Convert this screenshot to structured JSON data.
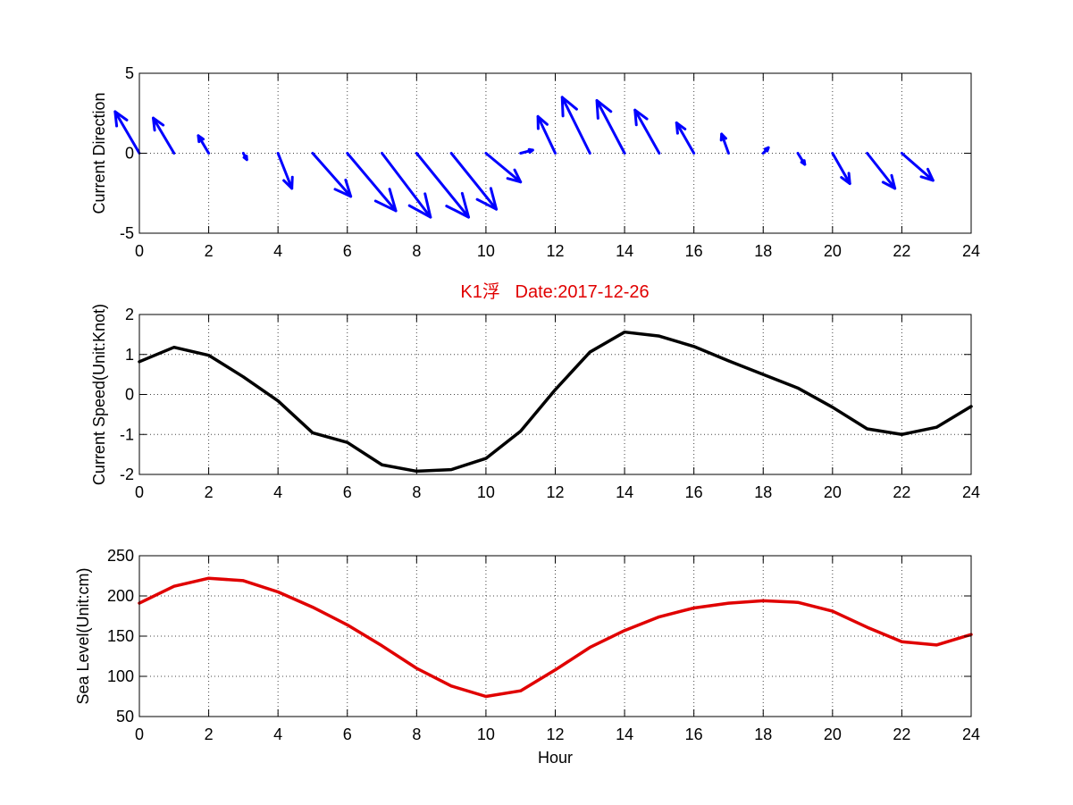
{
  "title": "K1浮   Date:2017-12-26",
  "colors": {
    "title": "#e00000",
    "arrows": "#0000ff",
    "speed_line": "#000000",
    "sea_level_line": "#e00000",
    "axes": "#000000",
    "grid": "#444444",
    "background": "#ffffff"
  },
  "chart_data": [
    {
      "type": "quiver",
      "ylabel": "Current Direction",
      "xlabel": "",
      "xlim": [
        0,
        24
      ],
      "ylim": [
        -5,
        5
      ],
      "xticks": [
        0,
        2,
        4,
        6,
        8,
        10,
        12,
        14,
        16,
        18,
        20,
        22,
        24
      ],
      "yticks": [
        -5,
        0,
        5
      ],
      "grid": true,
      "arrows": [
        {
          "x": 0,
          "u": -0.7,
          "v": 2.6
        },
        {
          "x": 1,
          "u": -0.6,
          "v": 2.2
        },
        {
          "x": 2,
          "u": -0.3,
          "v": 1.1
        },
        {
          "x": 3,
          "u": 0.1,
          "v": -0.4
        },
        {
          "x": 4,
          "u": 0.4,
          "v": -2.2
        },
        {
          "x": 5,
          "u": 1.1,
          "v": -2.7
        },
        {
          "x": 6,
          "u": 1.4,
          "v": -3.6
        },
        {
          "x": 7,
          "u": 1.4,
          "v": -4.0
        },
        {
          "x": 8,
          "u": 1.5,
          "v": -4.0
        },
        {
          "x": 9,
          "u": 1.3,
          "v": -3.5
        },
        {
          "x": 10,
          "u": 1.0,
          "v": -1.8
        },
        {
          "x": 11,
          "u": 0.35,
          "v": 0.2
        },
        {
          "x": 12,
          "u": -0.5,
          "v": 2.3
        },
        {
          "x": 13,
          "u": -0.8,
          "v": 3.5
        },
        {
          "x": 14,
          "u": -0.8,
          "v": 3.3
        },
        {
          "x": 15,
          "u": -0.7,
          "v": 2.7
        },
        {
          "x": 16,
          "u": -0.5,
          "v": 1.9
        },
        {
          "x": 17,
          "u": -0.2,
          "v": 1.2
        },
        {
          "x": 18,
          "u": 0.15,
          "v": 0.35
        },
        {
          "x": 19,
          "u": 0.2,
          "v": -0.7
        },
        {
          "x": 20,
          "u": 0.5,
          "v": -1.9
        },
        {
          "x": 21,
          "u": 0.8,
          "v": -2.2
        },
        {
          "x": 22,
          "u": 0.9,
          "v": -1.7
        }
      ]
    },
    {
      "type": "line",
      "ylabel": "Current Speed(Unit:Knot)",
      "xlabel": "",
      "xlim": [
        0,
        24
      ],
      "ylim": [
        -2,
        2
      ],
      "xticks": [
        0,
        2,
        4,
        6,
        8,
        10,
        12,
        14,
        16,
        18,
        20,
        22,
        24
      ],
      "yticks": [
        -2,
        -1,
        0,
        1,
        2
      ],
      "grid": true,
      "x": [
        0,
        1,
        2,
        3,
        4,
        5,
        6,
        7,
        8,
        9,
        10,
        11,
        12,
        13,
        14,
        15,
        16,
        17,
        18,
        19,
        20,
        21,
        22,
        23,
        24
      ],
      "series": [
        {
          "values": [
            0.82,
            1.18,
            0.98,
            0.44,
            -0.16,
            -0.96,
            -1.2,
            -1.76,
            -1.92,
            -1.88,
            -1.6,
            -0.92,
            0.12,
            1.06,
            1.56,
            1.46,
            1.2,
            0.84,
            0.5,
            0.16,
            -0.32,
            -0.86,
            -1.0,
            -0.82,
            -0.3
          ]
        }
      ]
    },
    {
      "type": "line",
      "ylabel": "Sea Level(Unit:cm)",
      "xlabel": "Hour",
      "xlim": [
        0,
        24
      ],
      "ylim": [
        50,
        250
      ],
      "xticks": [
        0,
        2,
        4,
        6,
        8,
        10,
        12,
        14,
        16,
        18,
        20,
        22,
        24
      ],
      "yticks": [
        50,
        100,
        150,
        200,
        250
      ],
      "grid": true,
      "x": [
        0,
        1,
        2,
        3,
        4,
        5,
        6,
        7,
        8,
        9,
        10,
        11,
        12,
        13,
        14,
        15,
        16,
        17,
        18,
        19,
        20,
        21,
        22,
        23,
        24
      ],
      "series": [
        {
          "values": [
            191,
            212,
            222,
            219,
            205,
            186,
            164,
            138,
            110,
            88,
            75,
            82,
            108,
            136,
            157,
            174,
            185,
            191,
            194,
            192,
            181,
            161,
            143,
            139,
            152
          ]
        }
      ]
    }
  ]
}
